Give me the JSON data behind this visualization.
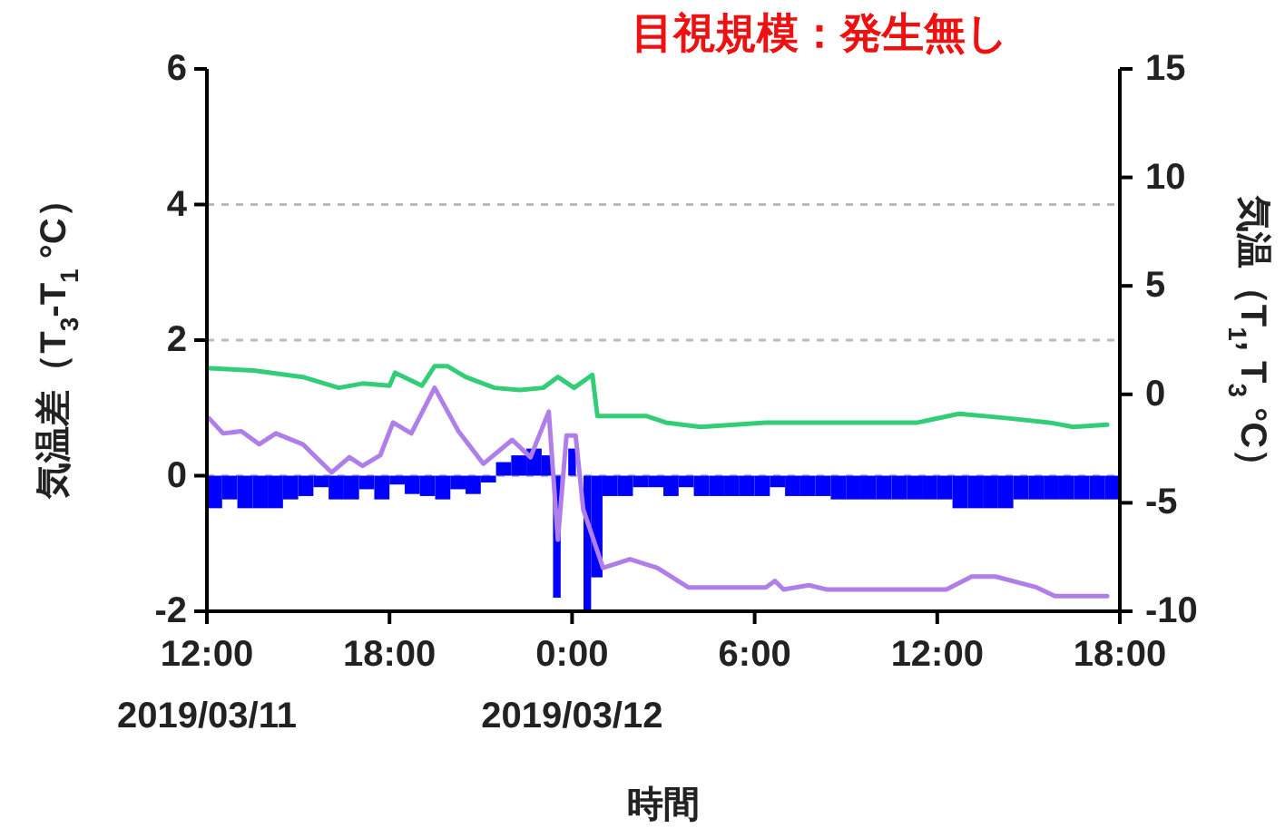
{
  "chart_data": {
    "type": "bar",
    "title": "目視規模：発生無し",
    "xlabel": "時間",
    "ylabel": "気温差（T$_{3}$-T$_{1}$ °C）",
    "y2label": "気温（T$_{1}$, T$_{3}$ °C）",
    "xlim": [
      "2019-03-11T12:00",
      "2019-03-12T18:00"
    ],
    "xticks": [
      {
        "value": "2019-03-11T12:00",
        "label": "12:00\n2019/03/11"
      },
      {
        "value": "2019-03-11T18:00",
        "label": "18:00"
      },
      {
        "value": "2019-03-12T00:00",
        "label": "0:00\n2019/03/12"
      },
      {
        "value": "2019-03-12T06:00",
        "label": "6:00"
      },
      {
        "value": "2019-03-12T12:00",
        "label": "12:00"
      },
      {
        "value": "2019-03-12T18:00",
        "label": "18:00"
      }
    ],
    "ylim": [
      -2,
      6
    ],
    "yticks": [
      -2,
      0,
      2,
      4,
      6
    ],
    "y2lim": [
      -10,
      15
    ],
    "y2ticks": [
      -10,
      -5,
      0,
      5,
      10,
      15
    ],
    "grid": "y",
    "series": [
      {
        "color": "#0000ff",
        "x": [
          "2019-03-11T12:15",
          "2019-03-11T12:45",
          "2019-03-11T13:15",
          "2019-03-11T13:45",
          "2019-03-11T14:15",
          "2019-03-11T14:45",
          "2019-03-11T15:15",
          "2019-03-11T15:45",
          "2019-03-11T16:15",
          "2019-03-11T16:45",
          "2019-03-11T17:15",
          "2019-03-11T17:45",
          "2019-03-11T18:15",
          "2019-03-11T18:45",
          "2019-03-11T19:15",
          "2019-03-11T19:45",
          "2019-03-11T20:15",
          "2019-03-11T20:45",
          "2019-03-11T21:15",
          "2019-03-11T21:45",
          "2019-03-11T22:15",
          "2019-03-11T22:45",
          "2019-03-11T23:15",
          "2019-03-11T23:30",
          "2019-03-11T23:45",
          "2019-03-12T00:00",
          "2019-03-12T00:15",
          "2019-03-12T00:30",
          "2019-03-12T00:45",
          "2019-03-12T01:15",
          "2019-03-12T01:45",
          "2019-03-12T02:15",
          "2019-03-12T02:45",
          "2019-03-12T03:15",
          "2019-03-12T03:45",
          "2019-03-12T04:15",
          "2019-03-12T04:45",
          "2019-03-12T05:15",
          "2019-03-12T05:45",
          "2019-03-12T06:15",
          "2019-03-12T06:45",
          "2019-03-12T07:15",
          "2019-03-12T07:45",
          "2019-03-12T08:15",
          "2019-03-12T08:45",
          "2019-03-12T09:15",
          "2019-03-12T09:45",
          "2019-03-12T10:15",
          "2019-03-12T10:45",
          "2019-03-12T11:15",
          "2019-03-12T11:45",
          "2019-03-12T12:15",
          "2019-03-12T12:45",
          "2019-03-12T13:15",
          "2019-03-12T13:45",
          "2019-03-12T14:15",
          "2019-03-12T14:45",
          "2019-03-12T15:15",
          "2019-03-12T15:45",
          "2019-03-12T16:15",
          "2019-03-12T16:45",
          "2019-03-12T17:15",
          "2019-03-12T17:45"
        ],
        "values": [
          -0.48,
          -0.35,
          -0.48,
          -0.48,
          -0.48,
          -0.35,
          -0.3,
          -0.17,
          -0.35,
          -0.35,
          -0.2,
          -0.35,
          -0.13,
          -0.27,
          -0.3,
          -0.35,
          -0.2,
          -0.27,
          -0.1,
          0.2,
          0.3,
          0.4,
          0.3,
          -1.8,
          null,
          0.4,
          null,
          -2.0,
          -1.5,
          -0.3,
          -0.3,
          -0.17,
          -0.17,
          -0.3,
          -0.17,
          -0.3,
          -0.3,
          -0.3,
          -0.3,
          -0.3,
          -0.17,
          -0.3,
          -0.3,
          -0.3,
          -0.35,
          -0.35,
          -0.35,
          -0.35,
          -0.35,
          -0.35,
          -0.35,
          -0.35,
          -0.48,
          -0.48,
          -0.48,
          -0.48,
          -0.35,
          -0.35,
          -0.35,
          -0.35,
          -0.35,
          -0.35,
          -0.35
        ]
      },
      {
        "type": "line",
        "axis": "y2",
        "color": "#33cc77",
        "x": [
          "2019-03-11T12:04",
          "2019-03-11T13:32",
          "2019-03-11T15:09",
          "2019-03-11T16:20",
          "2019-03-11T17:07",
          "2019-03-11T18:00",
          "2019-03-11T18:11",
          "2019-03-11T19:04",
          "2019-03-11T19:29",
          "2019-03-11T19:54",
          "2019-03-11T20:30",
          "2019-03-11T21:27",
          "2019-03-11T22:17",
          "2019-03-11T23:03",
          "2019-03-11T23:32",
          "2019-03-12T00:04",
          "2019-03-12T00:40",
          "2019-03-12T00:50",
          "2019-03-12T02:26",
          "2019-03-12T03:05",
          "2019-03-12T04:13",
          "2019-03-12T06:22",
          "2019-03-12T08:23",
          "2019-03-12T11:21",
          "2019-03-12T12:43",
          "2019-03-12T14:19",
          "2019-03-12T15:41",
          "2019-03-12T16:28",
          "2019-03-12T17:35"
        ],
        "values": [
          1.2,
          1.1,
          0.8,
          0.3,
          0.5,
          0.4,
          1.0,
          0.4,
          1.3,
          1.3,
          0.8,
          0.3,
          0.2,
          0.3,
          0.8,
          0.3,
          0.9,
          -1.0,
          -1.0,
          -1.3,
          -1.5,
          -1.3,
          -1.3,
          -1.3,
          -0.9,
          -1.1,
          -1.3,
          -1.5,
          -1.4
        ]
      },
      {
        "type": "line",
        "axis": "y2",
        "color": "#b07ee8",
        "x": [
          "2019-03-11T12:04",
          "2019-03-11T12:32",
          "2019-03-11T13:08",
          "2019-03-11T13:43",
          "2019-03-11T14:16",
          "2019-03-11T15:09",
          "2019-03-11T16:06",
          "2019-03-11T16:41",
          "2019-03-11T17:07",
          "2019-03-11T17:42",
          "2019-03-11T18:07",
          "2019-03-11T18:43",
          "2019-03-11T19:29",
          "2019-03-11T20:16",
          "2019-03-11T21:05",
          "2019-03-11T22:02",
          "2019-03-11T22:38",
          "2019-03-11T23:14",
          "2019-03-11T23:32",
          "2019-03-11T23:49",
          "2019-03-12T00:07",
          "2019-03-12T00:22",
          "2019-03-12T01:01",
          "2019-03-12T01:54",
          "2019-03-12T02:48",
          "2019-03-12T03:49",
          "2019-03-12T06:22",
          "2019-03-12T06:40",
          "2019-03-12T06:57",
          "2019-03-12T07:47",
          "2019-03-12T08:23",
          "2019-03-12T12:18",
          "2019-03-12T13:08",
          "2019-03-12T13:55",
          "2019-03-12T15:16",
          "2019-03-12T15:52",
          "2019-03-12T17:35"
        ],
        "values": [
          -1.1,
          -1.8,
          -1.7,
          -2.3,
          -1.8,
          -2.3,
          -3.6,
          -2.9,
          -3.3,
          -2.8,
          -1.3,
          -1.8,
          0.3,
          -1.7,
          -3.2,
          -2.1,
          -2.9,
          -0.8,
          -6.7,
          -1.9,
          -1.9,
          -5.3,
          -8.0,
          -7.6,
          -8.0,
          -8.9,
          -8.9,
          -8.6,
          -9.0,
          -8.8,
          -9.0,
          -9.0,
          -8.4,
          -8.4,
          -8.9,
          -9.3,
          -9.3
        ]
      }
    ]
  }
}
